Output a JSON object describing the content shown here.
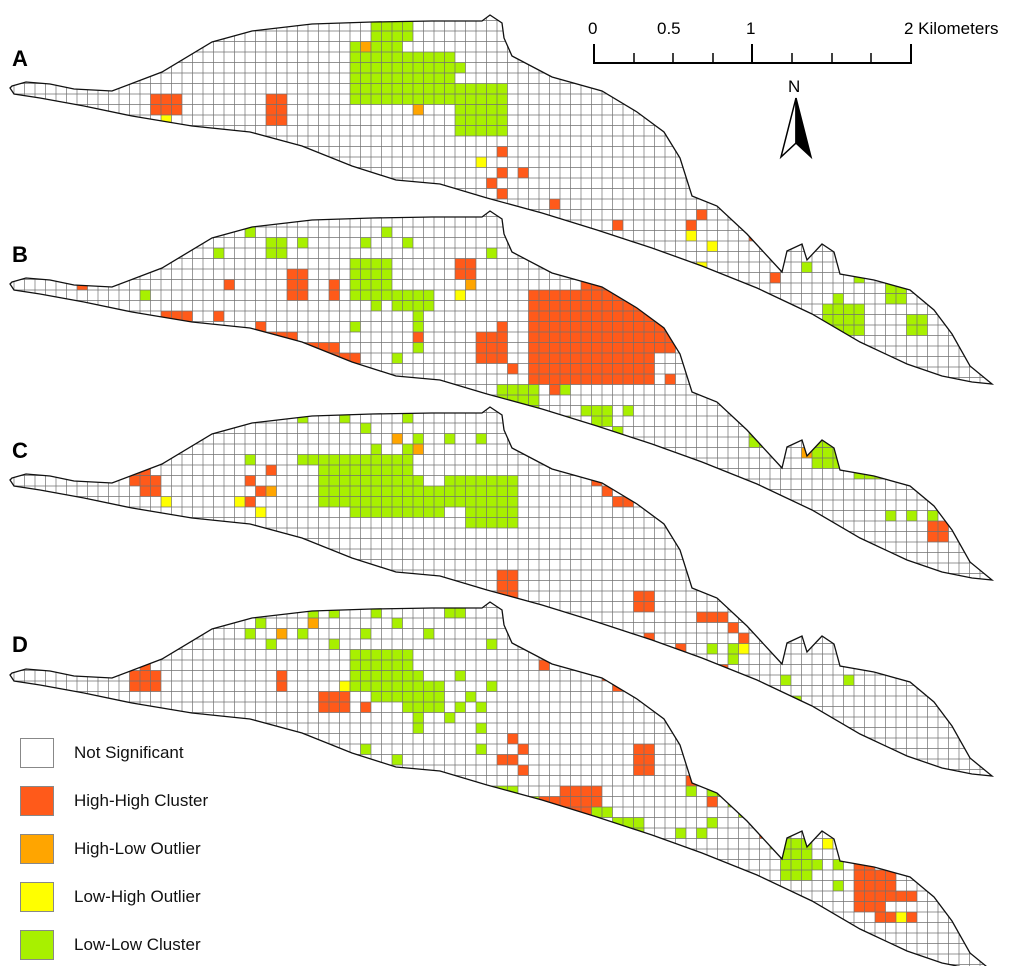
{
  "panels": [
    {
      "label": "A"
    },
    {
      "label": "B"
    },
    {
      "label": "C"
    },
    {
      "label": "D"
    }
  ],
  "scale_bar": {
    "ticks": [
      "0",
      "0.5",
      "1",
      "2 Kilometers"
    ]
  },
  "north_arrow": {
    "label": "N"
  },
  "legend": {
    "items": [
      {
        "label": "Not Significant",
        "color": "#ffffff"
      },
      {
        "label": "High-High Cluster",
        "color": "#ff5a1a"
      },
      {
        "label": "High-Low Outlier",
        "color": "#ffa500"
      },
      {
        "label": "Low-High Outlier",
        "color": "#ffff00"
      },
      {
        "label": "Low-Low Cluster",
        "color": "#a8f000"
      }
    ]
  },
  "colors": {
    "grid_line": "#707070",
    "outline": "#111111",
    "not_significant": "#ffffff",
    "high_high": "#ff5a1a",
    "high_low": "#ffa500",
    "low_high": "#ffff00",
    "low_low": "#a8f000"
  }
}
